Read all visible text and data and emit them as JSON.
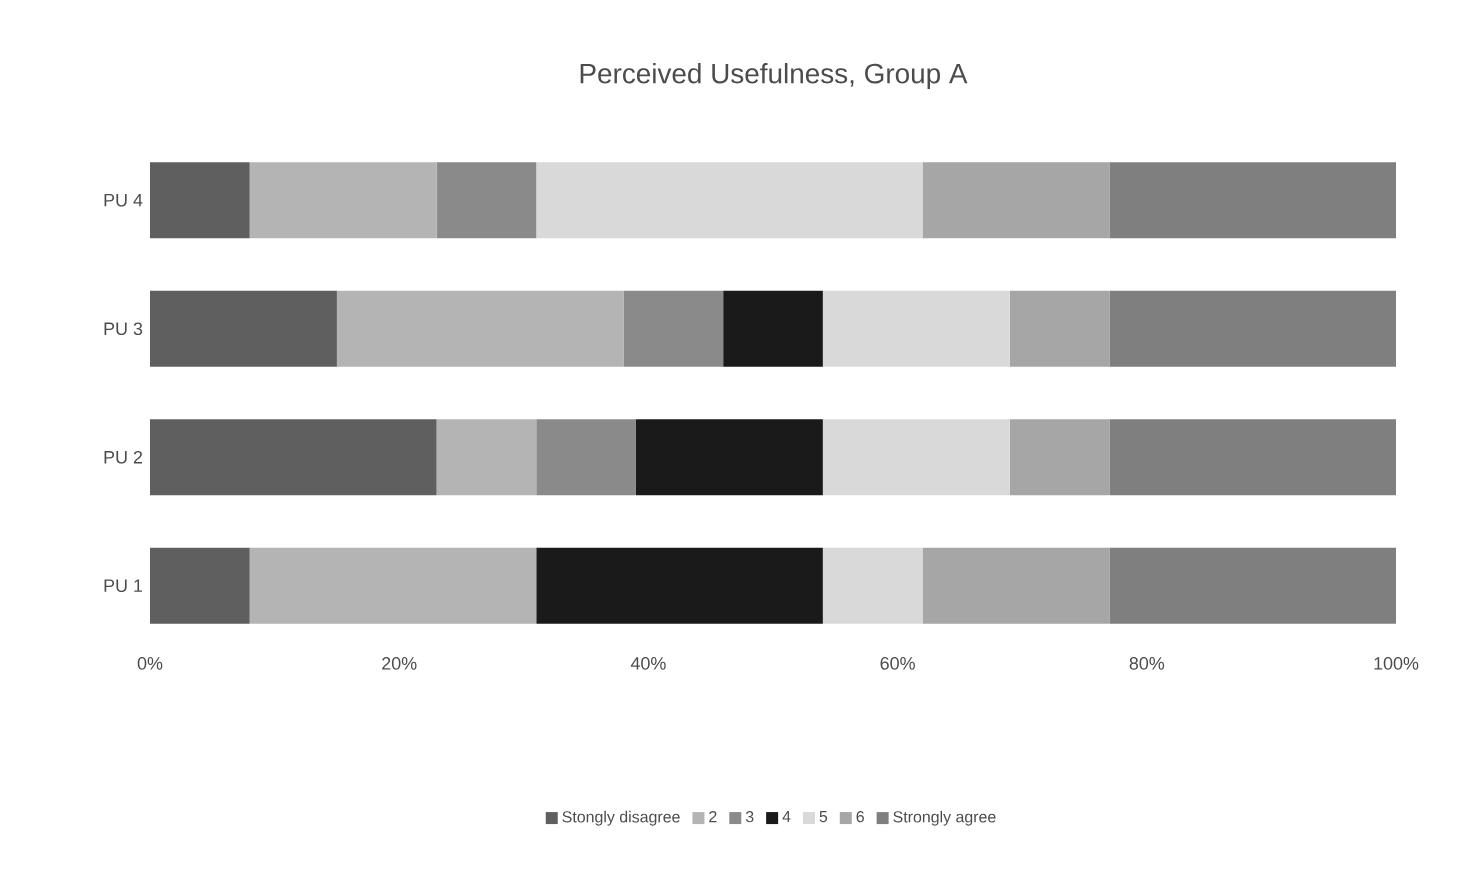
{
  "chart_data": {
    "type": "bar",
    "orientation": "horizontal",
    "stacked": true,
    "title": "Perceived Usefulness, Group A",
    "categories": [
      "PU 4",
      "PU 3",
      "PU 2",
      "PU 1"
    ],
    "series": [
      {
        "name": "Stongly disagree",
        "color": "#5f5f5f",
        "values": [
          8,
          15,
          23,
          8
        ]
      },
      {
        "name": "2",
        "color": "#b4b4b4",
        "values": [
          15,
          23,
          8,
          23
        ]
      },
      {
        "name": "3",
        "color": "#8a8a8a",
        "values": [
          8,
          8,
          8,
          0
        ]
      },
      {
        "name": "4",
        "color": "#1a1a1a",
        "values": [
          0,
          8,
          15,
          23
        ]
      },
      {
        "name": "5",
        "color": "#d9d9d9",
        "values": [
          31,
          15,
          15,
          8
        ]
      },
      {
        "name": "6",
        "color": "#a6a6a6",
        "values": [
          15,
          8,
          8,
          15
        ]
      },
      {
        "name": "Strongly agree",
        "color": "#7f7f7f",
        "values": [
          23,
          23,
          23,
          23
        ]
      }
    ],
    "xlim": [
      0,
      100
    ],
    "xticks": [
      {
        "value": 0,
        "label": "0%"
      },
      {
        "value": 20,
        "label": "20%"
      },
      {
        "value": 40,
        "label": "40%"
      },
      {
        "value": 60,
        "label": "60%"
      },
      {
        "value": 80,
        "label": "80%"
      },
      {
        "value": 100,
        "label": "100%"
      }
    ],
    "legend": "bottom",
    "grid": false
  }
}
